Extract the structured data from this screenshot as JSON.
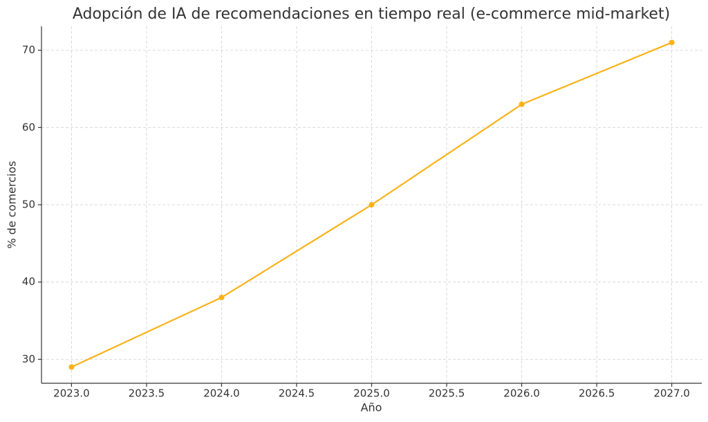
{
  "chart_data": {
    "type": "line",
    "title": "Adopción de IA de recomendaciones en tiempo real (e-commerce mid-market)",
    "x_label": "Año",
    "y_label": "% de comercios",
    "x": [
      2023,
      2024,
      2025,
      2026,
      2027
    ],
    "values": [
      29,
      38,
      50,
      63,
      71
    ],
    "color": "#fbb117",
    "xlim": [
      2022.8,
      2027.2
    ],
    "ylim": [
      26.9,
      73.1
    ],
    "xticks": [
      {
        "value": 2023,
        "label": "2023.0"
      },
      {
        "value": 2023.5,
        "label": "2023.5"
      },
      {
        "value": 2024,
        "label": "2024.0"
      },
      {
        "value": 2024.5,
        "label": "2024.5"
      },
      {
        "value": 2025,
        "label": "2025.0"
      },
      {
        "value": 2025.5,
        "label": "2025.5"
      },
      {
        "value": 2026,
        "label": "2026.0"
      },
      {
        "value": 2026.5,
        "label": "2026.5"
      },
      {
        "value": 2027,
        "label": "2027.0"
      }
    ],
    "yticks": [
      30,
      40,
      50,
      60,
      70
    ],
    "grid": true
  }
}
